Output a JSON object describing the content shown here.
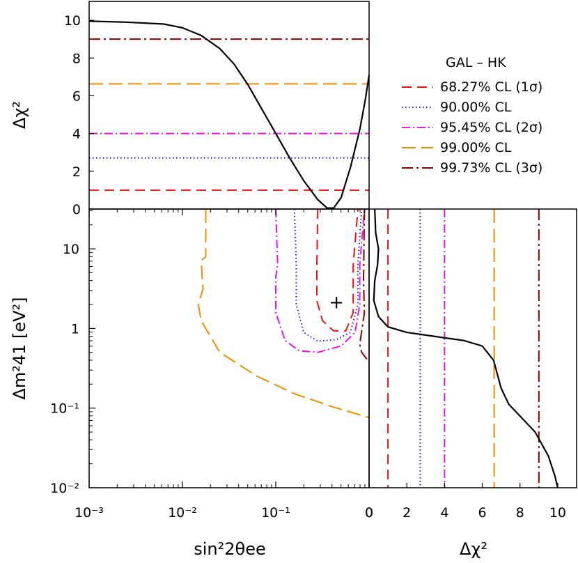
{
  "chart_data": [
    {
      "id": "top",
      "type": "line",
      "ylabel": "Δχ²",
      "xlim_log": [
        -3,
        0
      ],
      "ylim": [
        0,
        11
      ],
      "yticks": [
        "0",
        "2",
        "4",
        "6",
        "8",
        "10"
      ],
      "ytick_values": [
        0,
        2,
        4,
        6,
        8,
        10
      ],
      "series": [
        {
          "color": "#000000",
          "dash": "",
          "points": [
            [
              -3,
              9.95
            ],
            [
              -2.6,
              9.9
            ],
            [
              -2.2,
              9.8
            ],
            [
              -2.0,
              9.6
            ],
            [
              -1.8,
              9.2
            ],
            [
              -1.6,
              8.5
            ],
            [
              -1.45,
              7.7
            ],
            [
              -1.3,
              6.6
            ],
            [
              -1.15,
              5.3
            ],
            [
              -1.0,
              4.0
            ],
            [
              -0.85,
              2.7
            ],
            [
              -0.7,
              1.5
            ],
            [
              -0.55,
              0.5
            ],
            [
              -0.45,
              0.05
            ],
            [
              -0.38,
              0.05
            ],
            [
              -0.3,
              0.6
            ],
            [
              -0.2,
              2.2
            ],
            [
              -0.1,
              4.2
            ],
            [
              -0.04,
              5.8
            ],
            [
              0,
              7.1
            ]
          ]
        }
      ],
      "hlines": [
        {
          "name": "68.27% CL (1σ)",
          "value": 1.0,
          "color": "#ee1111",
          "dash": "14,8"
        },
        {
          "name": "90.00% CL",
          "value": 2.71,
          "color": "#1111ee",
          "dash": "1.5,3.5"
        },
        {
          "name": "95.45% CL (2σ)",
          "value": 4.0,
          "color": "#ee11ee",
          "dash": "12,4,2,4"
        },
        {
          "name": "99.00% CL",
          "value": 6.63,
          "color": "#f08c00",
          "dash": "20,8"
        },
        {
          "name": "99.73% CL (3σ)",
          "value": 9.0,
          "color": "#8b0000",
          "dash": "16,5,3,5"
        }
      ]
    },
    {
      "id": "contour",
      "type": "line",
      "xlabel": "sin²2θee",
      "ylabel": "Δm²41 [eV²]",
      "xlim_log": [
        -3,
        0
      ],
      "ylim_log": [
        -2,
        1.5
      ],
      "xticks": [
        "10⁻³",
        "10⁻²",
        "10⁻¹",
        "0"
      ],
      "xtick_values": [
        -3,
        -2,
        -1,
        0
      ],
      "yticks": [
        "10⁻²",
        "10⁻¹",
        "1",
        "10"
      ],
      "ytick_values": [
        -2,
        -1,
        0,
        1
      ],
      "best_fit": {
        "x_log": -0.35,
        "y_log": 0.33,
        "label": "+"
      },
      "series": [
        {
          "name": "99.00% CL",
          "color": "#f08c00",
          "dash": "20,8",
          "points": [
            [
              -1.75,
              1.5
            ],
            [
              -1.75,
              0.9
            ],
            [
              -1.8,
              0.85
            ],
            [
              -1.78,
              0.5
            ],
            [
              -1.83,
              0.3
            ],
            [
              -1.8,
              0.1
            ],
            [
              -1.6,
              -0.3
            ],
            [
              -1.2,
              -0.6
            ],
            [
              -0.8,
              -0.82
            ],
            [
              -0.4,
              -0.98
            ],
            [
              0,
              -1.12
            ]
          ]
        },
        {
          "name": "95.45% CL (2σ)",
          "color": "#ee11ee",
          "dash": "12,4,2,4",
          "points": [
            [
              -1.0,
              1.5
            ],
            [
              -0.98,
              0.8
            ],
            [
              -1.0,
              0.65
            ],
            [
              -1.0,
              0.2
            ],
            [
              -0.9,
              -0.15
            ],
            [
              -0.75,
              -0.28
            ],
            [
              -0.55,
              -0.3
            ],
            [
              -0.3,
              -0.22
            ],
            [
              -0.15,
              -0.05
            ],
            [
              -0.1,
              0.3
            ],
            [
              -0.1,
              0.8
            ],
            [
              -0.05,
              1.5
            ]
          ]
        },
        {
          "name": "90.00% CL",
          "color": "#1111ee",
          "dash": "1.5,3.5",
          "points": [
            [
              -0.8,
              1.5
            ],
            [
              -0.78,
              0.8
            ],
            [
              -0.78,
              0.3
            ],
            [
              -0.7,
              -0.05
            ],
            [
              -0.55,
              -0.16
            ],
            [
              -0.35,
              -0.14
            ],
            [
              -0.2,
              -0.05
            ],
            [
              -0.12,
              0.3
            ],
            [
              -0.12,
              0.8
            ],
            [
              -0.08,
              1.5
            ]
          ]
        },
        {
          "name": "68.27% CL (1σ)",
          "color": "#ee1111",
          "dash": "14,8",
          "points": [
            [
              -0.55,
              1.5
            ],
            [
              -0.56,
              0.8
            ],
            [
              -0.56,
              0.35
            ],
            [
              -0.5,
              0.1
            ],
            [
              -0.38,
              -0.03
            ],
            [
              -0.25,
              -0.03
            ],
            [
              -0.17,
              0.2
            ],
            [
              -0.17,
              0.8
            ],
            [
              -0.12,
              1.5
            ]
          ]
        },
        {
          "name": "99.73% CL (3σ)",
          "color": "#8b0000",
          "dash": "16,5,3,5",
          "points": [
            [
              -0.05,
              1.5
            ],
            [
              -0.06,
              0.6
            ],
            [
              -0.05,
              0.2
            ],
            [
              -0.1,
              -0.2
            ],
            [
              -0.08,
              -0.3
            ],
            [
              0,
              -0.42
            ]
          ]
        }
      ]
    },
    {
      "id": "right",
      "type": "line",
      "xlabel": "Δχ²",
      "xlim": [
        0,
        11
      ],
      "ylim_log": [
        -2,
        1.5
      ],
      "xticks": [
        "0",
        "2",
        "4",
        "6",
        "8",
        "10"
      ],
      "xtick_values": [
        0,
        2,
        4,
        6,
        8,
        10
      ],
      "series": [
        {
          "color": "#000000",
          "dash": "",
          "points": [
            [
              0.3,
              1.5
            ],
            [
              0.35,
              1.2
            ],
            [
              0.5,
              1.0
            ],
            [
              0.45,
              0.8
            ],
            [
              0.3,
              0.6
            ],
            [
              0.25,
              0.35
            ],
            [
              0.5,
              0.15
            ],
            [
              1.0,
              0.02
            ],
            [
              2.0,
              -0.05
            ],
            [
              3.5,
              -0.1
            ],
            [
              5.0,
              -0.15
            ],
            [
              6.0,
              -0.22
            ],
            [
              6.6,
              -0.4
            ],
            [
              7.0,
              -0.75
            ],
            [
              7.4,
              -0.95
            ],
            [
              8.0,
              -1.1
            ],
            [
              8.8,
              -1.3
            ],
            [
              9.5,
              -1.6
            ],
            [
              9.85,
              -1.85
            ],
            [
              10.0,
              -2.0
            ]
          ]
        }
      ],
      "vlines": [
        {
          "value": 1.0,
          "color": "#ee1111",
          "dash": "14,8"
        },
        {
          "value": 2.71,
          "color": "#1111ee",
          "dash": "1.5,3.5"
        },
        {
          "value": 4.0,
          "color": "#ee11ee",
          "dash": "12,4,2,4"
        },
        {
          "value": 6.63,
          "color": "#f08c00",
          "dash": "20,8"
        },
        {
          "value": 9.0,
          "color": "#8b0000",
          "dash": "16,5,3,5"
        }
      ]
    }
  ],
  "legend": {
    "title": "GAL – HK",
    "items": [
      {
        "label": "68.27% CL (1σ)",
        "color": "#ee1111",
        "dash": "14,8"
      },
      {
        "label": "90.00% CL",
        "color": "#1111ee",
        "dash": "1.5,3.5"
      },
      {
        "label": "95.45% CL (2σ)",
        "color": "#ee11ee",
        "dash": "12,4,2,4"
      },
      {
        "label": "99.00% CL",
        "color": "#f08c00",
        "dash": "20,8"
      },
      {
        "label": "99.73% CL (3σ)",
        "color": "#8b0000",
        "dash": "16,5,3,5"
      }
    ]
  }
}
